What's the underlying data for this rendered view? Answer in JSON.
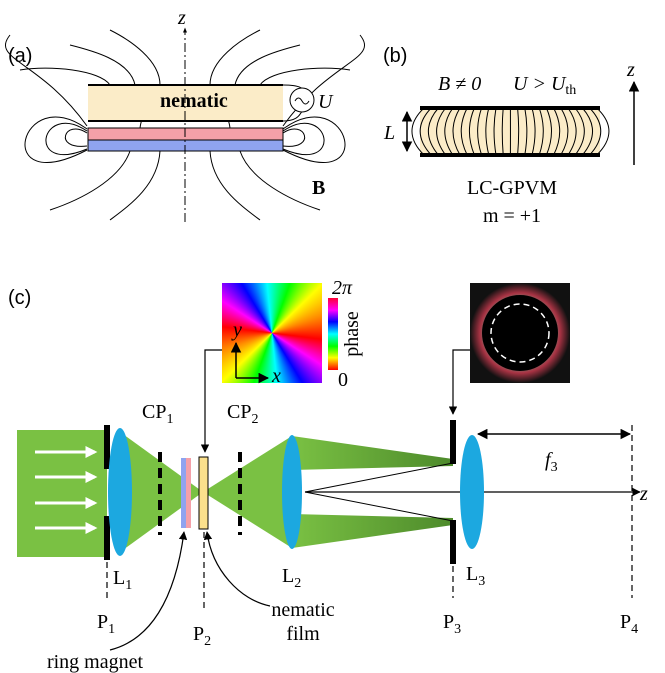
{
  "panel_a": {
    "label": "(a)",
    "axis": "z",
    "layer": "nematic",
    "voltage": "U",
    "field": "B"
  },
  "panel_b": {
    "label": "(b)",
    "condition_field": "B ≠ 0",
    "condition_voltage": {
      "base": "U > U",
      "sub": "th"
    },
    "thickness": "L",
    "axis": "z",
    "device": "LC-GPVM",
    "charge": "m = +1"
  },
  "panel_c": {
    "label": "(c)",
    "phase_inset": {
      "max": "2π",
      "min": "0",
      "title": "phase",
      "y": "y",
      "x": "x"
    },
    "labels": {
      "CP1": {
        "base": "CP",
        "sub": "1"
      },
      "CP2": {
        "base": "CP",
        "sub": "2"
      },
      "L1": {
        "base": "L",
        "sub": "1"
      },
      "L2": {
        "base": "L",
        "sub": "2"
      },
      "L3": {
        "base": "L",
        "sub": "3"
      },
      "P1": {
        "base": "P",
        "sub": "1"
      },
      "P2": {
        "base": "P",
        "sub": "2"
      },
      "P3": {
        "base": "P",
        "sub": "3"
      },
      "P4": {
        "base": "P",
        "sub": "4"
      }
    },
    "focal": {
      "base": "f",
      "sub": "3"
    },
    "axis": "z",
    "ring_magnet": "ring magnet",
    "nematic_film": [
      "nematic",
      "film"
    ]
  }
}
